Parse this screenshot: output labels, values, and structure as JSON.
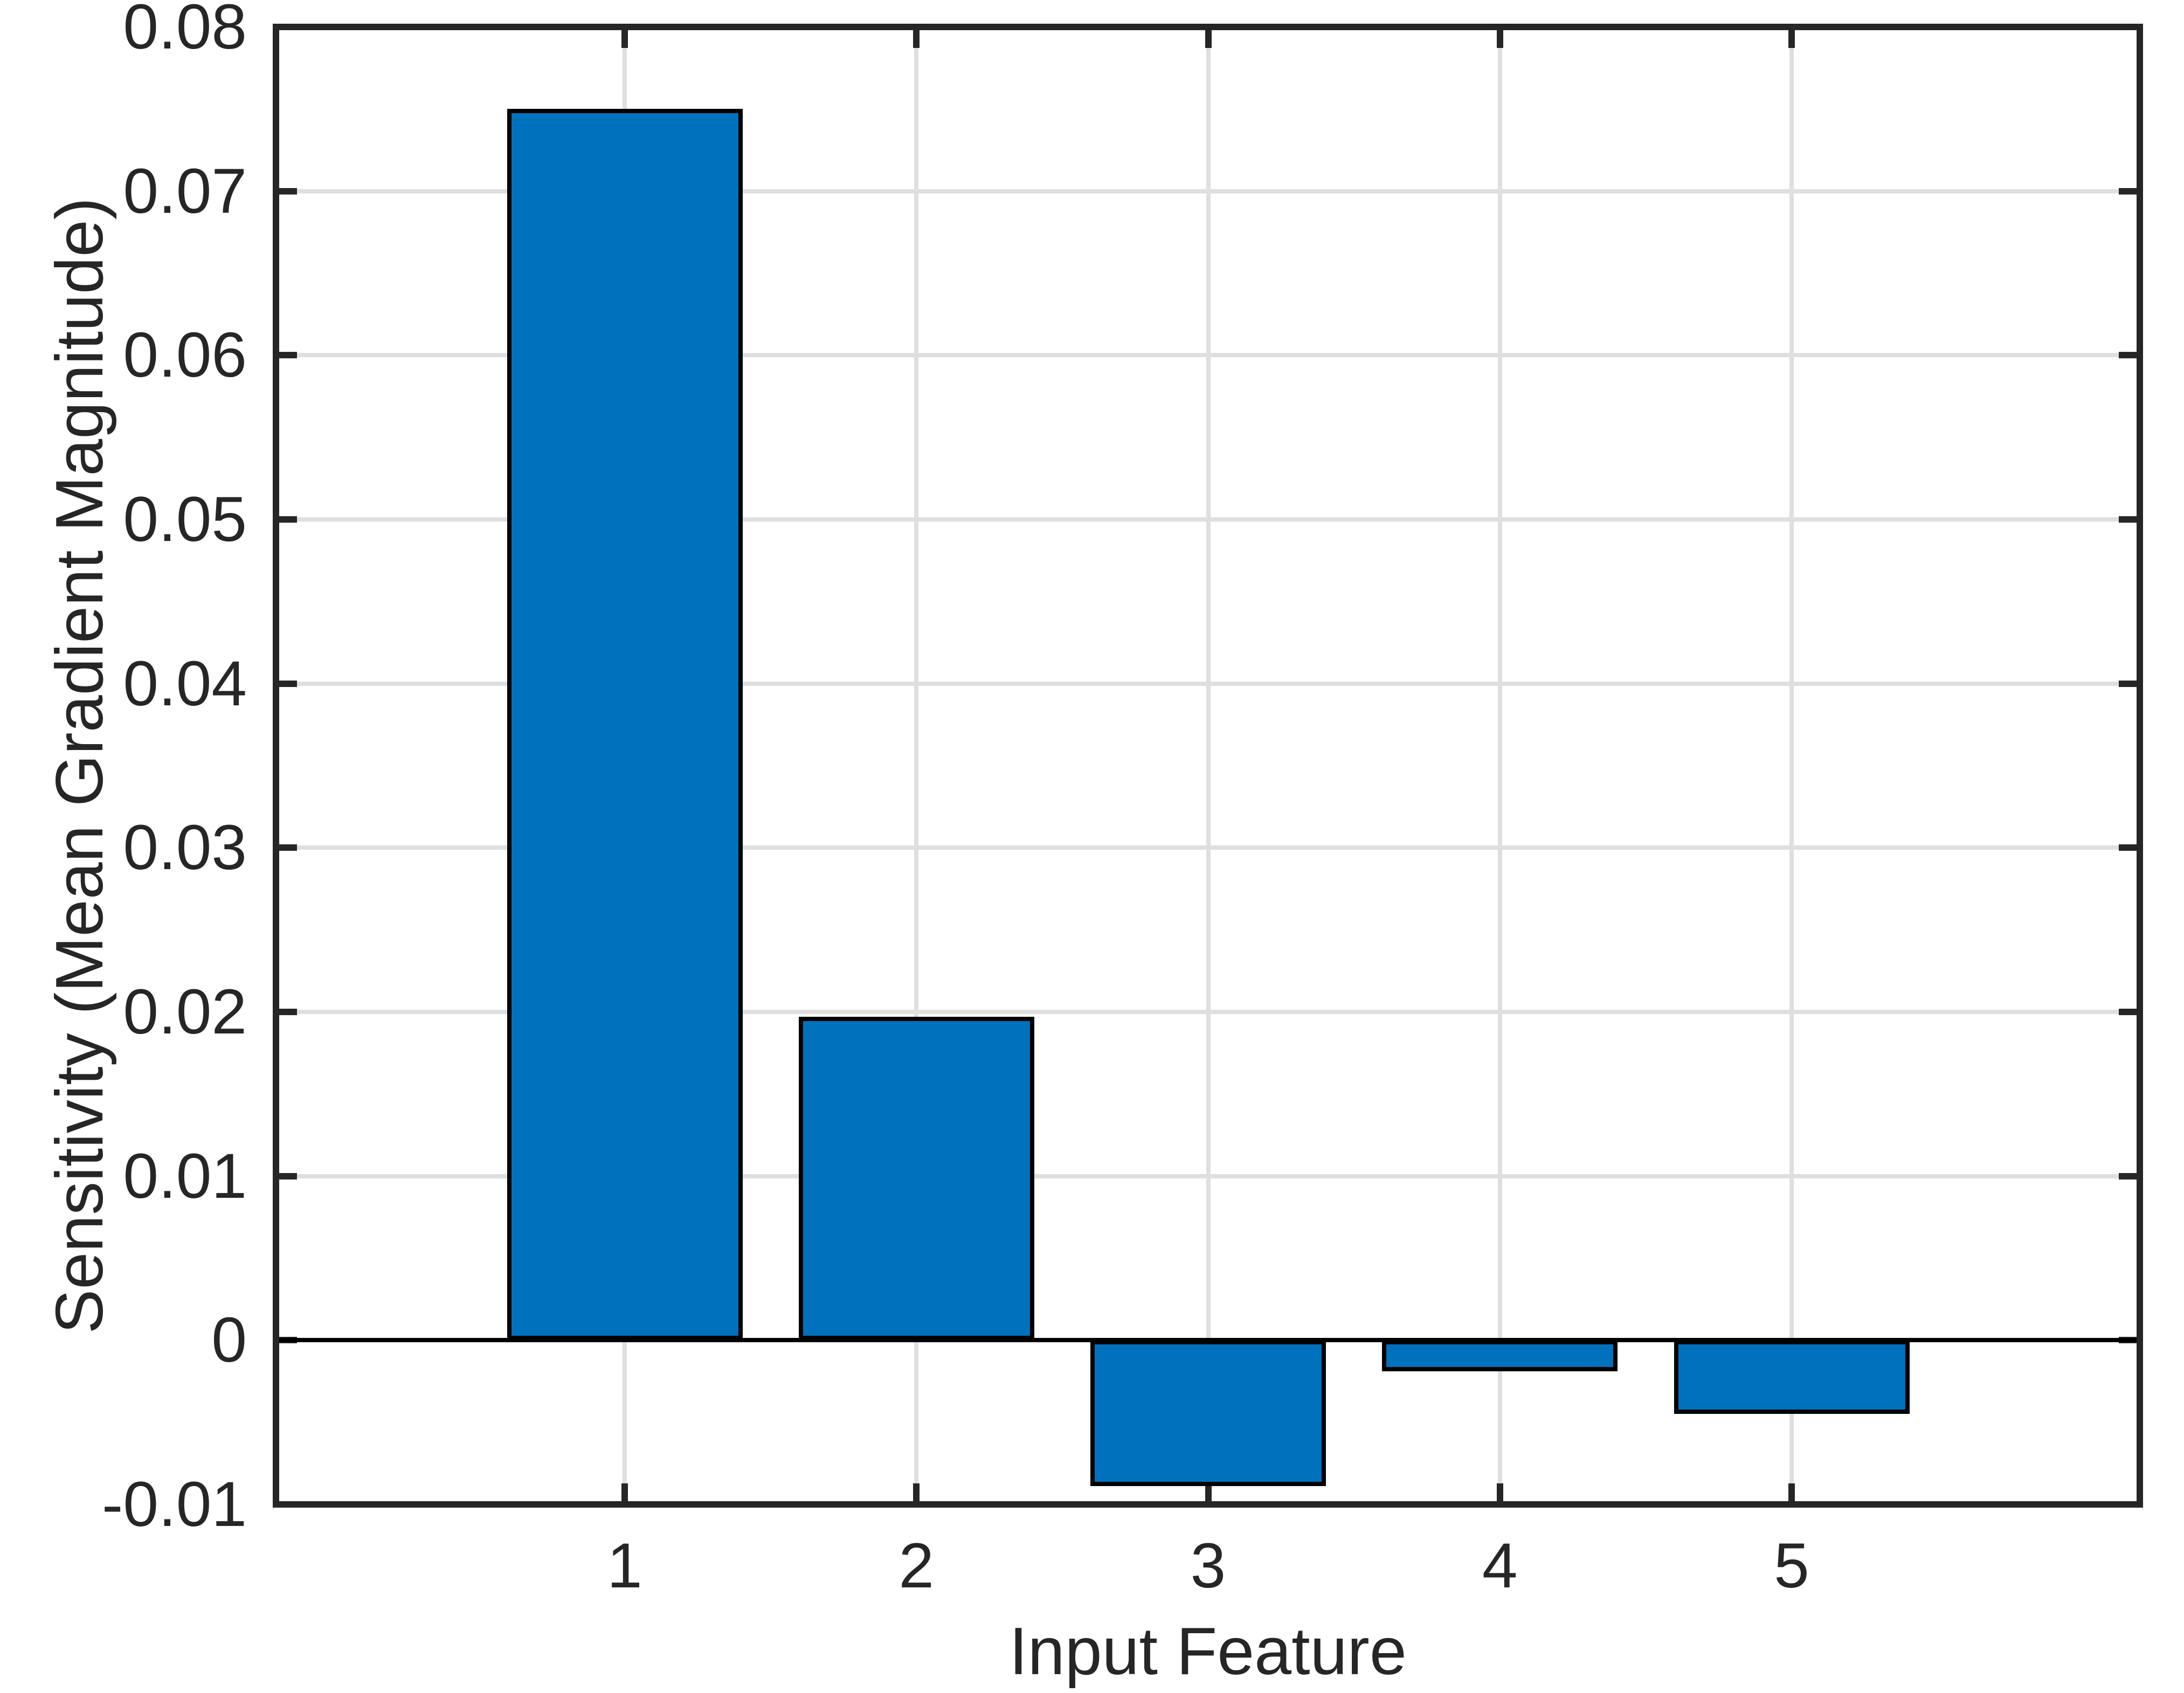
{
  "chart_data": {
    "type": "bar",
    "categories": [
      "1",
      "2",
      "3",
      "4",
      "5"
    ],
    "values": [
      0.075,
      0.0197,
      -0.0089,
      -0.0019,
      -0.0045
    ],
    "xlabel": "Input Feature",
    "ylabel": "Sensitivity (Mean Gradient Magnitude)",
    "ylim": [
      -0.01,
      0.08
    ],
    "yticks": [
      0.08,
      0.07,
      0.06,
      0.05,
      0.04,
      0.03,
      0.02,
      0.01,
      0,
      -0.01
    ],
    "ytick_labels": [
      "0.08",
      "0.07",
      "0.06",
      "0.05",
      "0.04",
      "0.03",
      "0.02",
      "0.01",
      "0",
      "-0.01"
    ],
    "xtick_labels": [
      "1",
      "2",
      "3",
      "4",
      "5"
    ],
    "grid": true,
    "legend_position": "none",
    "bar_width_fraction": 0.8,
    "colors": {
      "bar_fill": "#0072BD",
      "bar_edge": "#000000",
      "axis": "#262626",
      "grid": "#dfdfdf",
      "zero_line": "#000000",
      "text": "#262626",
      "background": "#ffffff"
    }
  }
}
